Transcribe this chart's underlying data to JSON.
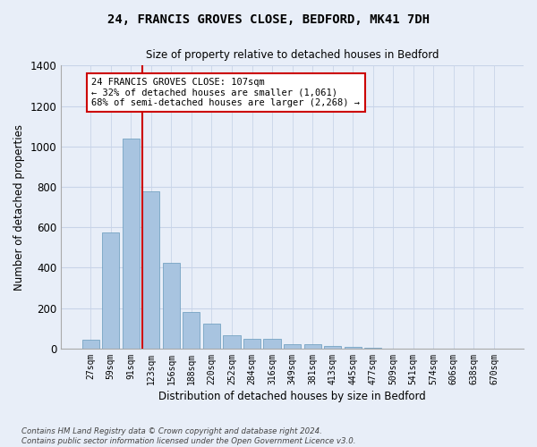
{
  "title1": "24, FRANCIS GROVES CLOSE, BEDFORD, MK41 7DH",
  "title2": "Size of property relative to detached houses in Bedford",
  "xlabel": "Distribution of detached houses by size in Bedford",
  "ylabel": "Number of detached properties",
  "categories": [
    "27sqm",
    "59sqm",
    "91sqm",
    "123sqm",
    "156sqm",
    "188sqm",
    "220sqm",
    "252sqm",
    "284sqm",
    "316sqm",
    "349sqm",
    "381sqm",
    "413sqm",
    "445sqm",
    "477sqm",
    "509sqm",
    "541sqm",
    "574sqm",
    "606sqm",
    "638sqm",
    "670sqm"
  ],
  "values": [
    45,
    575,
    1040,
    780,
    425,
    180,
    125,
    65,
    50,
    50,
    22,
    20,
    15,
    10,
    5,
    0,
    0,
    0,
    0,
    0,
    0
  ],
  "bar_color": "#a8c4e0",
  "bar_edge_color": "#6699bb",
  "annotation_text_line1": "24 FRANCIS GROVES CLOSE: 107sqm",
  "annotation_text_line2": "← 32% of detached houses are smaller (1,061)",
  "annotation_text_line3": "68% of semi-detached houses are larger (2,268) →",
  "annotation_box_color": "#ffffff",
  "annotation_box_edge_color": "#cc0000",
  "vline_color": "#cc0000",
  "grid_color": "#c8d4e8",
  "background_color": "#e8eef8",
  "ylim": [
    0,
    1400
  ],
  "yticks": [
    0,
    200,
    400,
    600,
    800,
    1000,
    1200,
    1400
  ],
  "footer1": "Contains HM Land Registry data © Crown copyright and database right 2024.",
  "footer2": "Contains public sector information licensed under the Open Government Licence v3.0."
}
